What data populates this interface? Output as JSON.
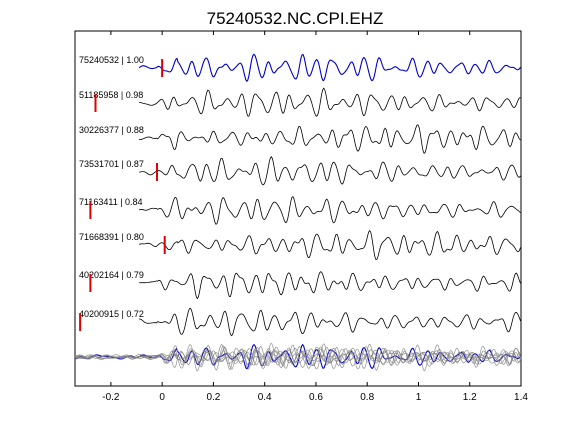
{
  "chart_data": {
    "type": "line",
    "title": "75240532.NC.CPI.EHZ",
    "xlabel": "",
    "ylabel": "",
    "xlim": [
      -0.34,
      1.4
    ],
    "x_ticks": [
      "-0.2",
      "0",
      "0.2",
      "0.4",
      "0.6",
      "0.8",
      "1",
      "1.2",
      "1.4"
    ],
    "x_tick_values": [
      -0.2,
      0,
      0.2,
      0.4,
      0.6,
      0.8,
      1.0,
      1.2,
      1.4
    ],
    "grid": false,
    "colors": {
      "reference": "#0000cc",
      "trace": "#000000",
      "overlay": "#808080",
      "pick": "#dd0000"
    },
    "traces": [
      {
        "id": "75240532",
        "cc": "1.00",
        "label": "75240532 | 1.00",
        "pick": 0.0,
        "reference": true,
        "seed": 11
      },
      {
        "id": "51185958",
        "cc": "0.98",
        "label": "51185958 | 0.98",
        "pick": -0.26,
        "seed": 23
      },
      {
        "id": "30226377",
        "cc": "0.88",
        "label": "30226377 | 0.88",
        "pick": null,
        "seed": 37
      },
      {
        "id": "73531701",
        "cc": "0.87",
        "label": "73531701 | 0.87",
        "pick": -0.02,
        "seed": 41
      },
      {
        "id": "71163411",
        "cc": "0.84",
        "label": "71163411 | 0.84",
        "pick": -0.28,
        "seed": 53
      },
      {
        "id": "71668391",
        "cc": "0.80",
        "label": "71668391 | 0.80",
        "pick": 0.01,
        "seed": 67
      },
      {
        "id": "40202164",
        "cc": "0.79",
        "label": "40202164 | 0.79",
        "pick": -0.28,
        "seed": 71
      },
      {
        "id": "40200915",
        "cc": "0.72",
        "label": "40200915 | 0.72",
        "pick": -0.32,
        "seed": 83
      }
    ],
    "stack": {
      "label": ""
    }
  }
}
